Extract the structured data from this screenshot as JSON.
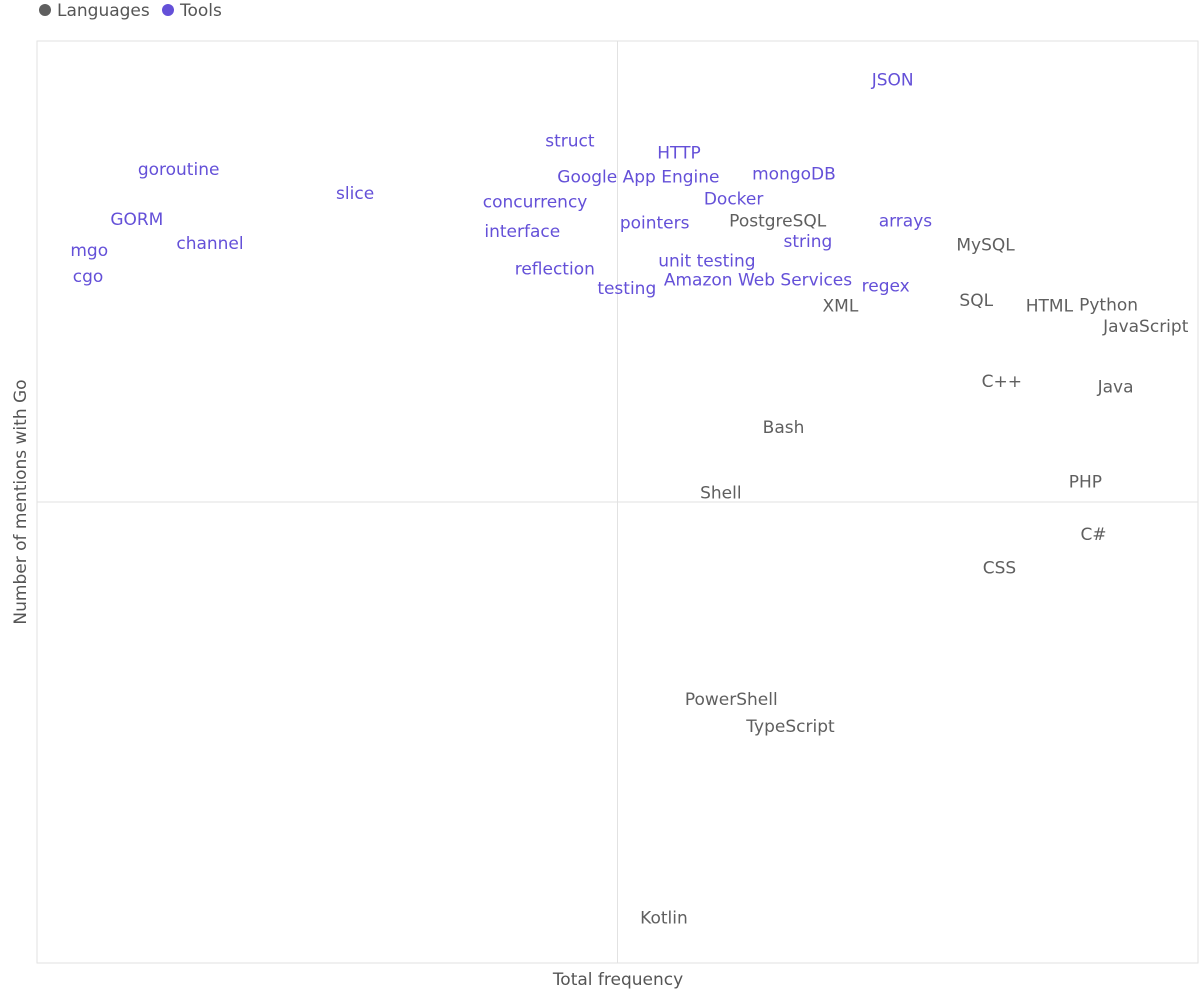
{
  "chart_data": {
    "type": "scatter",
    "title": "",
    "xlabel": "Total frequency",
    "ylabel": "Number of mentions with Go",
    "xlim": [
      0,
      1000
    ],
    "ylim": [
      0,
      1000
    ],
    "x_axis_line": 500,
    "y_axis_line": 500,
    "ticks": "none",
    "grid": false,
    "legend": {
      "placement": "top-left",
      "entries": [
        {
          "name": "Languages",
          "color": "#5f5f5f"
        },
        {
          "name": "Tools",
          "color": "#6450d8"
        }
      ]
    },
    "series": [
      {
        "name": "Tools",
        "color": "#6450d8",
        "points": [
          {
            "label": "JSON",
            "x": 737,
            "y": 957
          },
          {
            "label": "struct",
            "x": 459,
            "y": 891
          },
          {
            "label": "HTTP",
            "x": 553,
            "y": 878
          },
          {
            "label": "goroutine",
            "x": 122,
            "y": 860
          },
          {
            "label": "Google App Engine",
            "x": 518,
            "y": 852
          },
          {
            "label": "mongoDB",
            "x": 652,
            "y": 855
          },
          {
            "label": "slice",
            "x": 274,
            "y": 834
          },
          {
            "label": "concurrency",
            "x": 429,
            "y": 825
          },
          {
            "label": "Docker",
            "x": 600,
            "y": 828
          },
          {
            "label": "GORM",
            "x": 86,
            "y": 806
          },
          {
            "label": "pointers",
            "x": 532,
            "y": 802
          },
          {
            "label": "arrays",
            "x": 748,
            "y": 804
          },
          {
            "label": "interface",
            "x": 418,
            "y": 793
          },
          {
            "label": "channel",
            "x": 149,
            "y": 780
          },
          {
            "label": "string",
            "x": 664,
            "y": 782
          },
          {
            "label": "mgo",
            "x": 45,
            "y": 772
          },
          {
            "label": "unit testing",
            "x": 577,
            "y": 761
          },
          {
            "label": "reflection",
            "x": 446,
            "y": 752
          },
          {
            "label": "cgo",
            "x": 44,
            "y": 744
          },
          {
            "label": "Amazon Web Services",
            "x": 621,
            "y": 740
          },
          {
            "label": "regex",
            "x": 731,
            "y": 734
          },
          {
            "label": "testing",
            "x": 508,
            "y": 731
          }
        ]
      },
      {
        "name": "Languages",
        "color": "#5f5f5f",
        "points": [
          {
            "label": "PostgreSQL",
            "x": 638,
            "y": 804
          },
          {
            "label": "MySQL",
            "x": 817,
            "y": 778
          },
          {
            "label": "XML",
            "x": 692,
            "y": 712
          },
          {
            "label": "SQL",
            "x": 809,
            "y": 718
          },
          {
            "label": "HTML",
            "x": 872,
            "y": 712
          },
          {
            "label": "Python",
            "x": 923,
            "y": 713
          },
          {
            "label": "JavaScript",
            "x": 955,
            "y": 690
          },
          {
            "label": "C++",
            "x": 831,
            "y": 630
          },
          {
            "label": "Java",
            "x": 929,
            "y": 624
          },
          {
            "label": "Bash",
            "x": 643,
            "y": 580
          },
          {
            "label": "PHP",
            "x": 903,
            "y": 521
          },
          {
            "label": "Shell",
            "x": 589,
            "y": 509
          },
          {
            "label": "C#",
            "x": 910,
            "y": 464
          },
          {
            "label": "CSS",
            "x": 829,
            "y": 428
          },
          {
            "label": "PowerShell",
            "x": 598,
            "y": 285
          },
          {
            "label": "TypeScript",
            "x": 649,
            "y": 256
          },
          {
            "label": "Kotlin",
            "x": 540,
            "y": 48
          }
        ]
      }
    ]
  }
}
